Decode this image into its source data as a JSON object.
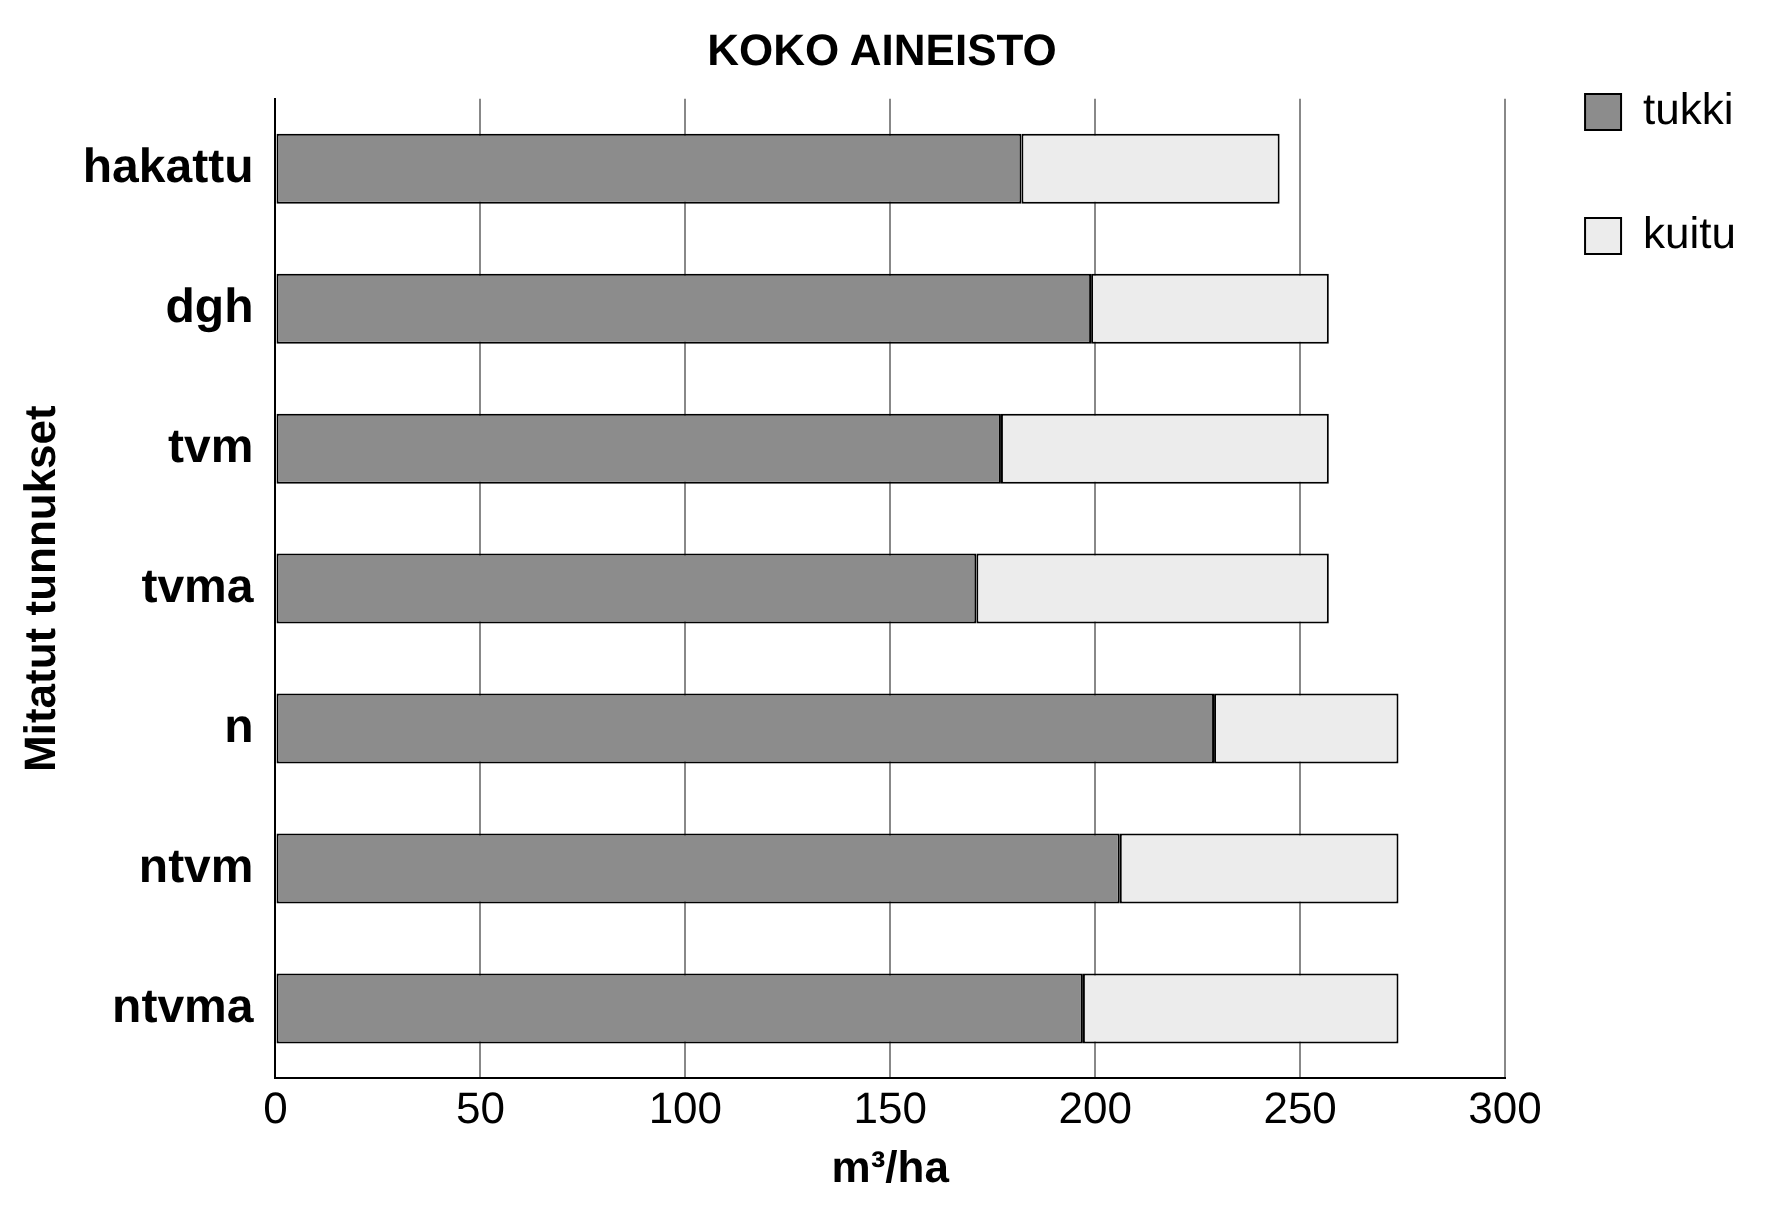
{
  "chart_data": {
    "type": "bar",
    "orientation": "horizontal",
    "stacked": true,
    "title": "KOKO AINEISTO",
    "xlabel": "m³/ha",
    "ylabel": "Mitatut tunnukset",
    "categories": [
      "hakattu",
      "dgh",
      "tvm",
      "tvma",
      "n",
      "ntvm",
      "ntvma"
    ],
    "series": [
      {
        "name": "tukki",
        "color": "#8c8c8c",
        "values": [
          182,
          199,
          177,
          171,
          229,
          206,
          197
        ]
      },
      {
        "name": "kuitu",
        "color": "#ececec",
        "values": [
          63,
          58,
          80,
          86,
          45,
          68,
          77
        ]
      }
    ],
    "xlim": [
      0,
      300
    ],
    "xticks": [
      0,
      50,
      100,
      150,
      200,
      250,
      300
    ],
    "grid": "x",
    "legend": "top right"
  }
}
